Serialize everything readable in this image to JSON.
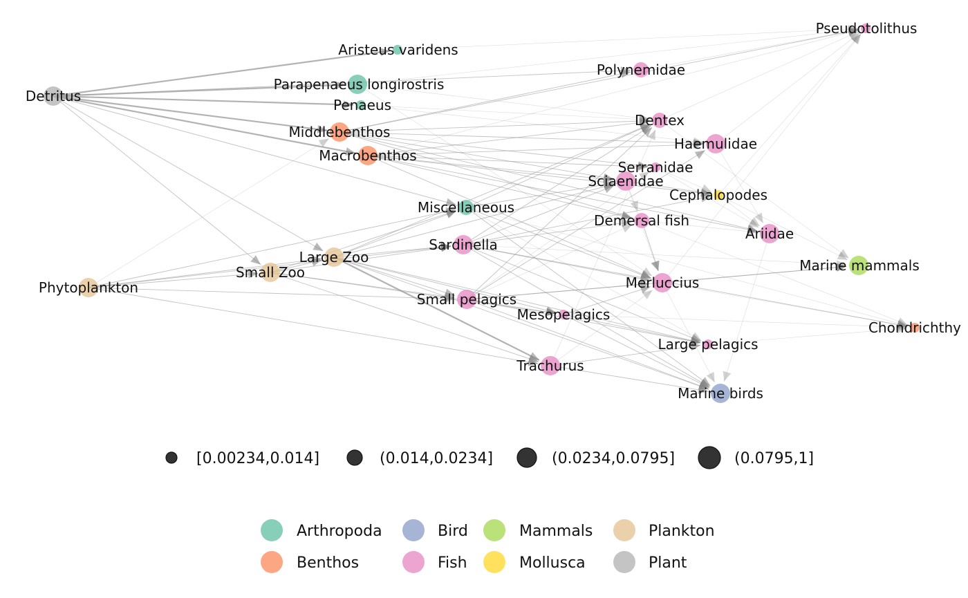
{
  "nodes": [
    {
      "id": "aristeus",
      "label": "Aristeus varidens",
      "group": "Arthropoda",
      "size_class": 0
    },
    {
      "id": "parapenaeus",
      "label": "Parapenaeus longirostris",
      "group": "Arthropoda",
      "size_class": 3
    },
    {
      "id": "penaeus",
      "label": "Penaeus",
      "group": "Arthropoda",
      "size_class": 0
    },
    {
      "id": "detritus",
      "label": "Detritus",
      "group": "Plant",
      "size_class": 3
    },
    {
      "id": "middlebenthos",
      "label": "Middlebenthos",
      "group": "Benthos",
      "size_class": 3
    },
    {
      "id": "macrobenthos",
      "label": "Macrobenthos",
      "group": "Benthos",
      "size_class": 3
    },
    {
      "id": "polynemidae",
      "label": "Polynemidae",
      "group": "Fish",
      "size_class": 2
    },
    {
      "id": "pseudotolithus",
      "label": "Pseudotolithus",
      "group": "Fish",
      "size_class": 0
    },
    {
      "id": "dentex",
      "label": "Dentex",
      "group": "Fish",
      "size_class": 2
    },
    {
      "id": "haemulidae",
      "label": "Haemulidae",
      "group": "Fish",
      "size_class": 3
    },
    {
      "id": "serranidae",
      "label": "Serranidae",
      "group": "Fish",
      "size_class": 0
    },
    {
      "id": "sciaenidae",
      "label": "Sciaenidae",
      "group": "Fish",
      "size_class": 3
    },
    {
      "id": "cephalopodes",
      "label": "Cephalopodes",
      "group": "Mollusca",
      "size_class": 0
    },
    {
      "id": "miscellaneous",
      "label": "Miscellaneous",
      "group": "Arthropoda",
      "size_class": 2
    },
    {
      "id": "demersal",
      "label": "Demersal fish",
      "group": "Fish",
      "size_class": 2
    },
    {
      "id": "ariidae",
      "label": "Ariidae",
      "group": "Fish",
      "size_class": 3
    },
    {
      "id": "sardinella",
      "label": "Sardinella",
      "group": "Fish",
      "size_class": 3
    },
    {
      "id": "largezoo",
      "label": "Large Zoo",
      "group": "Plankton",
      "size_class": 3
    },
    {
      "id": "smallzoo",
      "label": "Small Zoo",
      "group": "Plankton",
      "size_class": 3
    },
    {
      "id": "phytoplankton",
      "label": "Phytoplankton",
      "group": "Plankton",
      "size_class": 3
    },
    {
      "id": "marinemammals",
      "label": "Marine mammals",
      "group": "Mammals",
      "size_class": 3
    },
    {
      "id": "merluccius",
      "label": "Merluccius",
      "group": "Fish",
      "size_class": 3
    },
    {
      "id": "smallpelagics",
      "label": "Small pelagics",
      "group": "Fish",
      "size_class": 3
    },
    {
      "id": "mesopelagics",
      "label": "Mesopelagics",
      "group": "Fish",
      "size_class": 0
    },
    {
      "id": "chondrichthy",
      "label": "Chondrichthy",
      "group": "Benthos",
      "size_class": 0
    },
    {
      "id": "largepelagics",
      "label": "Large pelagics",
      "group": "Fish",
      "size_class": 0
    },
    {
      "id": "trachurus",
      "label": "Trachurus",
      "group": "Fish",
      "size_class": 3
    },
    {
      "id": "marinebirds",
      "label": "Marine birds",
      "group": "Bird",
      "size_class": 3
    }
  ],
  "edges": [
    [
      "detritus",
      "aristeus",
      2
    ],
    [
      "detritus",
      "parapenaeus",
      2
    ],
    [
      "detritus",
      "penaeus",
      2
    ],
    [
      "detritus",
      "middlebenthos",
      2
    ],
    [
      "detritus",
      "macrobenthos",
      2
    ],
    [
      "detritus",
      "smallzoo",
      1
    ],
    [
      "detritus",
      "largezoo",
      1
    ],
    [
      "detritus",
      "miscellaneous",
      1
    ],
    [
      "detritus",
      "polynemidae",
      1
    ],
    [
      "phytoplankton",
      "smallzoo",
      1
    ],
    [
      "phytoplankton",
      "largezoo",
      1
    ],
    [
      "phytoplankton",
      "miscellaneous",
      1
    ],
    [
      "phytoplankton",
      "smallpelagics",
      1
    ],
    [
      "phytoplankton",
      "sardinella",
      1
    ],
    [
      "phytoplankton",
      "middlebenthos",
      0
    ],
    [
      "phytoplankton",
      "trachurus",
      1
    ],
    [
      "smallzoo",
      "largezoo",
      1
    ],
    [
      "smallzoo",
      "sardinella",
      1
    ],
    [
      "smallzoo",
      "smallpelagics",
      1
    ],
    [
      "smallzoo",
      "miscellaneous",
      1
    ],
    [
      "smallzoo",
      "mesopelagics",
      1
    ],
    [
      "smallzoo",
      "trachurus",
      1
    ],
    [
      "largezoo",
      "sardinella",
      1
    ],
    [
      "largezoo",
      "smallpelagics",
      1
    ],
    [
      "largezoo",
      "trachurus",
      2
    ],
    [
      "largezoo",
      "mesopelagics",
      1
    ],
    [
      "largezoo",
      "miscellaneous",
      1
    ],
    [
      "largezoo",
      "dentex",
      1
    ],
    [
      "largezoo",
      "sciaenidae",
      1
    ],
    [
      "largezoo",
      "marinebirds",
      1
    ],
    [
      "largezoo",
      "largepelagics",
      1
    ],
    [
      "middlebenthos",
      "dentex",
      1
    ],
    [
      "middlebenthos",
      "haemulidae",
      1
    ],
    [
      "middlebenthos",
      "sciaenidae",
      1
    ],
    [
      "middlebenthos",
      "pseudotolithus",
      1
    ],
    [
      "middlebenthos",
      "polynemidae",
      1
    ],
    [
      "middlebenthos",
      "serranidae",
      1
    ],
    [
      "middlebenthos",
      "demersal",
      1
    ],
    [
      "middlebenthos",
      "ariidae",
      1
    ],
    [
      "macrobenthos",
      "dentex",
      1
    ],
    [
      "macrobenthos",
      "haemulidae",
      1
    ],
    [
      "macrobenthos",
      "sciaenidae",
      1
    ],
    [
      "macrobenthos",
      "serranidae",
      1
    ],
    [
      "macrobenthos",
      "demersal",
      1
    ],
    [
      "macrobenthos",
      "ariidae",
      1
    ],
    [
      "macrobenthos",
      "cephalopodes",
      1
    ],
    [
      "macrobenthos",
      "merluccius",
      1
    ],
    [
      "macrobenthos",
      "pseudotolithus",
      0
    ],
    [
      "aristeus",
      "pseudotolithus",
      0
    ],
    [
      "parapenaeus",
      "pseudotolithus",
      0
    ],
    [
      "parapenaeus",
      "dentex",
      0
    ],
    [
      "penaeus",
      "dentex",
      0
    ],
    [
      "penaeus",
      "haemulidae",
      0
    ],
    [
      "parapenaeus",
      "merluccius",
      0
    ],
    [
      "miscellaneous",
      "dentex",
      1
    ],
    [
      "miscellaneous",
      "merluccius",
      1
    ],
    [
      "miscellaneous",
      "sciaenidae",
      1
    ],
    [
      "miscellaneous",
      "marinebirds",
      1
    ],
    [
      "miscellaneous",
      "largepelagics",
      0
    ],
    [
      "miscellaneous",
      "chondrichthy",
      0
    ],
    [
      "sardinella",
      "merluccius",
      1
    ],
    [
      "sardinella",
      "marinebirds",
      1
    ],
    [
      "sardinella",
      "largepelagics",
      1
    ],
    [
      "sardinella",
      "marinemammals",
      0
    ],
    [
      "sardinella",
      "cephalopodes",
      1
    ],
    [
      "sardinella",
      "sciaenidae",
      1
    ],
    [
      "sardinella",
      "dentex",
      1
    ],
    [
      "sardinella",
      "chondrichthy",
      1
    ],
    [
      "sardinella",
      "demersal",
      1
    ],
    [
      "smallpelagics",
      "merluccius",
      1
    ],
    [
      "smallpelagics",
      "marinebirds",
      1
    ],
    [
      "smallpelagics",
      "largepelagics",
      1
    ],
    [
      "smallpelagics",
      "mesopelagics",
      1
    ],
    [
      "smallpelagics",
      "marinemammals",
      1
    ],
    [
      "smallpelagics",
      "dentex",
      1
    ],
    [
      "smallpelagics",
      "haemulidae",
      1
    ],
    [
      "smallpelagics",
      "demersal",
      0
    ],
    [
      "smallpelagics",
      "serranidae",
      0
    ],
    [
      "mesopelagics",
      "merluccius",
      1
    ],
    [
      "mesopelagics",
      "largepelagics",
      1
    ],
    [
      "mesopelagics",
      "chondrichthy",
      0
    ],
    [
      "mesopelagics",
      "marinebirds",
      1
    ],
    [
      "trachurus",
      "marinebirds",
      1
    ],
    [
      "trachurus",
      "largepelagics",
      1
    ],
    [
      "trachurus",
      "merluccius",
      0
    ],
    [
      "trachurus",
      "dentex",
      0
    ],
    [
      "merluccius",
      "marinemammals",
      1
    ],
    [
      "merluccius",
      "chondrichthy",
      0
    ],
    [
      "merluccius",
      "pseudotolithus",
      0
    ],
    [
      "merluccius",
      "marinebirds",
      0
    ],
    [
      "demersal",
      "merluccius",
      1
    ],
    [
      "demersal",
      "ariidae",
      0
    ],
    [
      "demersal",
      "chondrichthy",
      0
    ],
    [
      "sciaenidae",
      "cephalopodes",
      1
    ],
    [
      "sciaenidae",
      "merluccius",
      0
    ],
    [
      "sciaenidae",
      "demersal",
      0
    ],
    [
      "serranidae",
      "cephalopodes",
      0
    ],
    [
      "haemulidae",
      "pseudotolithus",
      0
    ],
    [
      "cephalopodes",
      "ariidae",
      0
    ],
    [
      "cephalopodes",
      "pseudotolithus",
      0
    ],
    [
      "cephalopodes",
      "marinemammals",
      0
    ],
    [
      "dentex",
      "pseudotolithus",
      0
    ],
    [
      "polynemidae",
      "pseudotolithus",
      0
    ],
    [
      "largepelagics",
      "chondrichthy",
      0
    ],
    [
      "ariidae",
      "marinebirds",
      0
    ],
    [
      "serranidae",
      "ariidae",
      0
    ],
    [
      "haemulidae",
      "ariidae",
      0
    ],
    [
      "dentex",
      "marinemammals",
      0
    ]
  ],
  "size_legend": [
    {
      "label": "[0.00234,0.014]",
      "size_class": 0
    },
    {
      "label": "(0.014,0.0234]",
      "size_class": 1
    },
    {
      "label": "(0.0234,0.0795]",
      "size_class": 2
    },
    {
      "label": "(0.0795,1]",
      "size_class": 3
    }
  ],
  "color_legend": [
    {
      "label": "Arthropoda",
      "color": "#66c2a5"
    },
    {
      "label": "Bird",
      "color": "#8da0cb"
    },
    {
      "label": "Mammals",
      "color": "#a6d854"
    },
    {
      "label": "Plankton",
      "color": "#e5c494"
    },
    {
      "label": "Benthos",
      "color": "#fc8d62"
    },
    {
      "label": "Fish",
      "color": "#e78ac3"
    },
    {
      "label": "Mollusca",
      "color": "#ffd92f"
    },
    {
      "label": "Plant",
      "color": "#b3b3b3"
    }
  ],
  "size_legend_color": "#333333",
  "edge_color": "#999999"
}
